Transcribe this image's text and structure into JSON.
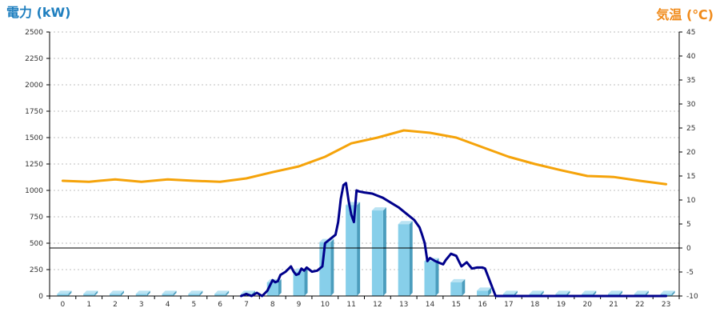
{
  "chart_data": {
    "type": "bar",
    "left_axis_title": "電力 (kW)",
    "right_axis_title": "気温 (℃)",
    "categories": [
      "0",
      "1",
      "2",
      "3",
      "4",
      "5",
      "6",
      "7",
      "8",
      "9",
      "10",
      "11",
      "12",
      "13",
      "14",
      "15",
      "16",
      "17",
      "18",
      "19",
      "20",
      "21",
      "22",
      "23"
    ],
    "y_left": {
      "min": 0,
      "max": 2500,
      "ticks": [
        0,
        250,
        500,
        750,
        1000,
        1250,
        1500,
        1750,
        2000,
        2250,
        2500
      ]
    },
    "y_right": {
      "min": -10,
      "max": 45,
      "ticks": [
        -10,
        -5,
        0,
        5,
        10,
        15,
        20,
        25,
        30,
        35,
        40,
        45
      ]
    },
    "grid": true,
    "series": [
      {
        "kind": "bar",
        "axis": "left",
        "values": [
          20,
          20,
          20,
          20,
          20,
          20,
          20,
          20,
          130,
          230,
          510,
          860,
          810,
          680,
          330,
          130,
          50,
          20,
          20,
          20,
          20,
          20,
          20,
          20
        ]
      },
      {
        "kind": "line",
        "axis": "left",
        "x": [
          6.8,
          7.0,
          7.2,
          7.4,
          7.6,
          7.8,
          8.0,
          8.1,
          8.2,
          8.3,
          8.5,
          8.7,
          8.8,
          8.9,
          9.0,
          9.1,
          9.2,
          9.3,
          9.5,
          9.7,
          9.9,
          10.0,
          10.2,
          10.4,
          10.5,
          10.6,
          10.7,
          10.8,
          10.9,
          11.0,
          11.1,
          11.2,
          11.3,
          11.5,
          11.8,
          12.0,
          12.2,
          12.4,
          12.6,
          12.8,
          13.0,
          13.2,
          13.4,
          13.6,
          13.7,
          13.8,
          13.9,
          14.0,
          14.2,
          14.4,
          14.5,
          14.6,
          14.8,
          15.0,
          15.1,
          15.2,
          15.4,
          15.6,
          15.8,
          16.0,
          16.1,
          16.5,
          17.0,
          18.0,
          19.0,
          20.0,
          21.0,
          22.0,
          23.0
        ],
        "values": [
          0,
          20,
          0,
          30,
          0,
          50,
          150,
          130,
          140,
          200,
          230,
          280,
          230,
          200,
          210,
          260,
          240,
          270,
          230,
          240,
          280,
          500,
          540,
          580,
          700,
          920,
          1050,
          1070,
          900,
          770,
          700,
          1000,
          990,
          980,
          970,
          950,
          930,
          900,
          870,
          840,
          800,
          760,
          720,
          650,
          580,
          500,
          330,
          360,
          330,
          310,
          300,
          340,
          400,
          380,
          330,
          280,
          320,
          260,
          270,
          270,
          260,
          0,
          0,
          0,
          0,
          0,
          0,
          0,
          0
        ]
      },
      {
        "kind": "line",
        "axis": "right",
        "x": [
          0,
          1,
          2,
          3,
          4,
          5,
          6,
          7,
          8,
          9,
          10,
          11,
          12,
          13,
          14,
          15,
          16,
          17,
          18,
          19,
          20,
          21,
          22,
          23
        ],
        "values": [
          14.0,
          13.8,
          14.3,
          13.8,
          14.3,
          14.0,
          13.8,
          14.5,
          15.8,
          17.0,
          19.0,
          21.8,
          23.0,
          24.5,
          24.0,
          23.0,
          21.0,
          19.0,
          17.5,
          16.2,
          15.0,
          14.8,
          14.0,
          13.3
        ]
      }
    ]
  },
  "colors": {
    "left_title": "#1f7fbf",
    "right_title": "#f08a1a",
    "bar_front": "#87cfea",
    "bar_side": "#4b9dbd",
    "bar_top": "#b9e3f3",
    "power_line": "#00008b",
    "temp_line": "#f5a30a",
    "zero_line": "#000000"
  }
}
